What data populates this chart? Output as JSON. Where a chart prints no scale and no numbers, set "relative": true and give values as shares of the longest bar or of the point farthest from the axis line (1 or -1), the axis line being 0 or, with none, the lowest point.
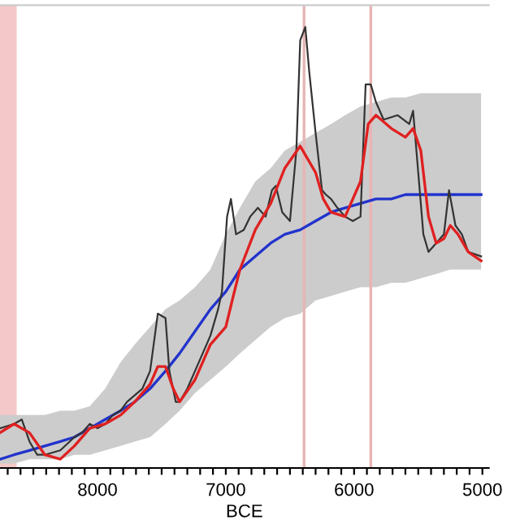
{
  "chart_data": {
    "type": "line",
    "xlabel": "BCE",
    "relative": true,
    "legend": false,
    "grid": false,
    "xlim": [
      8760,
      4950
    ],
    "xticks": [
      {
        "value": 8700,
        "label": null
      },
      {
        "value": 8600,
        "label": null
      },
      {
        "value": 8500,
        "label": null
      },
      {
        "value": 8400,
        "label": null
      },
      {
        "value": 8300,
        "label": null
      },
      {
        "value": 8200,
        "label": null
      },
      {
        "value": 8100,
        "label": null
      },
      8000,
      {
        "value": 7900,
        "label": null
      },
      {
        "value": 7800,
        "label": null
      },
      {
        "value": 7700,
        "label": null
      },
      {
        "value": 7600,
        "label": null
      },
      {
        "value": 7500,
        "label": null
      },
      {
        "value": 7400,
        "label": null
      },
      {
        "value": 7300,
        "label": null
      },
      {
        "value": 7200,
        "label": null
      },
      {
        "value": 7100,
        "label": null
      },
      7000,
      {
        "value": 6900,
        "label": null
      },
      {
        "value": 6800,
        "label": null
      },
      {
        "value": 6700,
        "label": null
      },
      {
        "value": 6600,
        "label": null
      },
      {
        "value": 6500,
        "label": null
      },
      {
        "value": 6400,
        "label": null
      },
      {
        "value": 6300,
        "label": null
      },
      {
        "value": 6200,
        "label": null
      },
      {
        "value": 6100,
        "label": null
      },
      6000,
      {
        "value": 5900,
        "label": null
      },
      {
        "value": 5800,
        "label": null
      },
      {
        "value": 5700,
        "label": null
      },
      {
        "value": 5600,
        "label": null
      },
      {
        "value": 5500,
        "label": null
      },
      {
        "value": 5400,
        "label": null
      },
      {
        "value": 5300,
        "label": null
      },
      {
        "value": 5200,
        "label": null
      },
      {
        "value": 5100,
        "label": null
      },
      5000
    ],
    "bands": [
      {
        "axis": "x",
        "from": 8760,
        "to": 8630,
        "color": "#f4c8c8"
      }
    ],
    "ref_lines": [
      {
        "axis": "x",
        "value": 6390,
        "color": "#e8b4b4"
      },
      {
        "axis": "x",
        "value": 5870,
        "color": "#e8b4b4"
      }
    ],
    "series": [
      {
        "color": "#2233cc",
        "x": [
          8760,
          8650,
          8530,
          8410,
          8290,
          8180,
          8060,
          7940,
          7820,
          7710,
          7590,
          7470,
          7360,
          7240,
          7120,
          7000,
          6890,
          6770,
          6650,
          6540,
          6420,
          6300,
          6180,
          6070,
          5950,
          5830,
          5710,
          5600,
          5480,
          5360,
          5250,
          5130,
          5010
        ],
        "values": [
          0.02,
          0.03,
          0.04,
          0.05,
          0.06,
          0.07,
          0.09,
          0.11,
          0.13,
          0.15,
          0.18,
          0.22,
          0.26,
          0.31,
          0.36,
          0.4,
          0.45,
          0.48,
          0.51,
          0.53,
          0.54,
          0.56,
          0.58,
          0.59,
          0.6,
          0.61,
          0.61,
          0.62,
          0.62,
          0.62,
          0.62,
          0.62,
          0.62
        ],
        "upper": [
          0.12,
          0.12,
          0.12,
          0.12,
          0.13,
          0.13,
          0.14,
          0.18,
          0.24,
          0.28,
          0.32,
          0.36,
          0.38,
          0.41,
          0.45,
          0.53,
          0.59,
          0.65,
          0.68,
          0.72,
          0.74,
          0.76,
          0.78,
          0.8,
          0.82,
          0.83,
          0.84,
          0.84,
          0.85,
          0.85,
          0.85,
          0.85,
          0.85
        ],
        "lower": [
          0.01,
          0.01,
          0.02,
          0.02,
          0.02,
          0.03,
          0.03,
          0.04,
          0.05,
          0.06,
          0.07,
          0.1,
          0.13,
          0.17,
          0.2,
          0.23,
          0.26,
          0.29,
          0.32,
          0.34,
          0.35,
          0.38,
          0.39,
          0.4,
          0.41,
          0.41,
          0.42,
          0.42,
          0.43,
          0.44,
          0.45,
          0.45,
          0.45
        ]
      },
      {
        "color": "#333333",
        "x": [
          8760,
          8650,
          8590,
          8530,
          8470,
          8410,
          8290,
          8180,
          8120,
          8060,
          8000,
          7940,
          7880,
          7820,
          7770,
          7650,
          7590,
          7530,
          7470,
          7440,
          7390,
          7360,
          7300,
          7240,
          7180,
          7120,
          7060,
          7030,
          6990,
          6960,
          6920,
          6860,
          6810,
          6750,
          6690,
          6640,
          6610,
          6560,
          6500,
          6450,
          6420,
          6380,
          6350,
          6300,
          6250,
          6220,
          6180,
          6130,
          6070,
          6010,
          5950,
          5910,
          5870,
          5830,
          5770,
          5660,
          5570,
          5540,
          5500,
          5460,
          5420,
          5360,
          5300,
          5260,
          5210,
          5160,
          5110,
          5010
        ],
        "values": [
          0.09,
          0.1,
          0.11,
          0.06,
          0.03,
          0.03,
          0.04,
          0.07,
          0.08,
          0.1,
          0.09,
          0.1,
          0.12,
          0.13,
          0.15,
          0.18,
          0.22,
          0.35,
          0.34,
          0.22,
          0.15,
          0.15,
          0.18,
          0.22,
          0.26,
          0.3,
          0.36,
          0.4,
          0.57,
          0.61,
          0.53,
          0.54,
          0.57,
          0.59,
          0.57,
          0.63,
          0.64,
          0.58,
          0.56,
          0.72,
          0.97,
          1.0,
          0.9,
          0.76,
          0.63,
          0.62,
          0.61,
          0.59,
          0.57,
          0.56,
          0.57,
          0.87,
          0.87,
          0.83,
          0.79,
          0.8,
          0.78,
          0.81,
          0.67,
          0.53,
          0.49,
          0.51,
          0.53,
          0.63,
          0.55,
          0.53,
          0.49,
          0.48
        ]
      },
      {
        "color": "#e02020",
        "x": [
          8760,
          8650,
          8530,
          8410,
          8290,
          8180,
          8060,
          7940,
          7820,
          7710,
          7590,
          7530,
          7470,
          7410,
          7360,
          7240,
          7120,
          7000,
          6950,
          6890,
          6770,
          6650,
          6540,
          6420,
          6300,
          6240,
          6180,
          6070,
          5950,
          5890,
          5830,
          5710,
          5600,
          5540,
          5480,
          5420,
          5360,
          5300,
          5250,
          5190,
          5110,
          5010
        ],
        "values": [
          0.08,
          0.1,
          0.08,
          0.03,
          0.02,
          0.05,
          0.09,
          0.1,
          0.12,
          0.15,
          0.19,
          0.23,
          0.23,
          0.18,
          0.15,
          0.2,
          0.28,
          0.32,
          0.38,
          0.45,
          0.54,
          0.6,
          0.68,
          0.73,
          0.67,
          0.61,
          0.58,
          0.57,
          0.65,
          0.78,
          0.8,
          0.77,
          0.75,
          0.77,
          0.72,
          0.57,
          0.51,
          0.52,
          0.55,
          0.53,
          0.49,
          0.47
        ]
      }
    ]
  }
}
